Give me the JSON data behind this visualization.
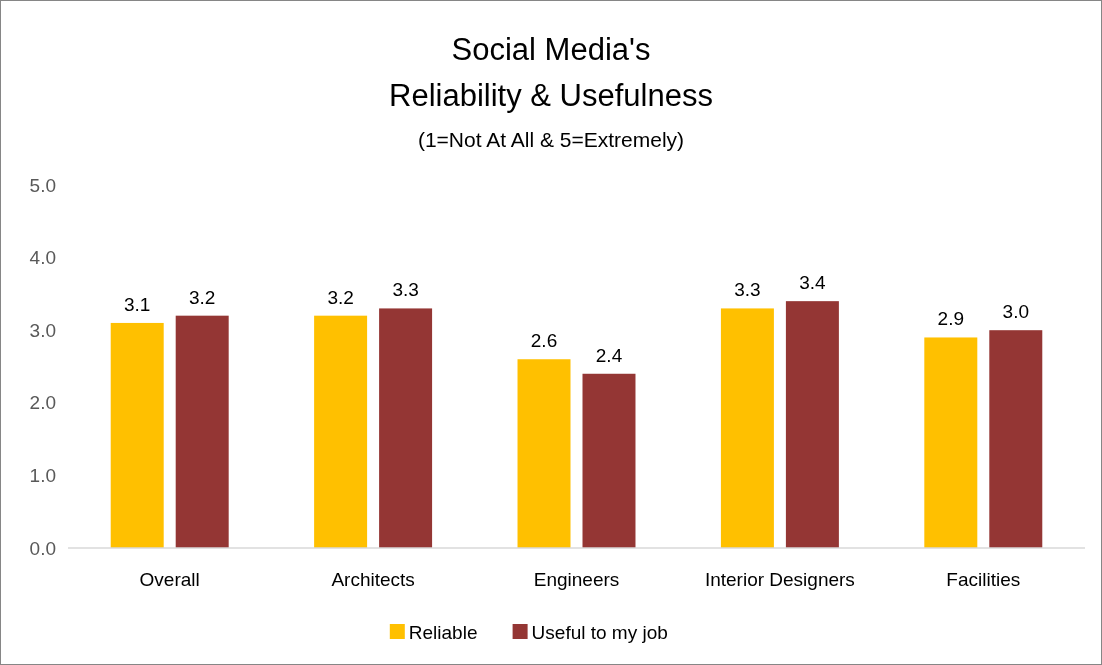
{
  "chart_data": {
    "type": "bar",
    "title": "Social Media's\nReliability & Usefulness",
    "subtitle": "(1=Not At All & 5=Extremely)",
    "categories": [
      "Overall",
      "Architects",
      "Engineers",
      "Interior Designers",
      "Facilities"
    ],
    "series": [
      {
        "name": "Reliable",
        "color": "#ffc000",
        "values": [
          3.1,
          3.2,
          2.6,
          3.3,
          2.9
        ],
        "value_labels": [
          "3.1",
          "3.2",
          "2.6",
          "3.3",
          "2.9"
        ]
      },
      {
        "name": "Useful to my job",
        "color": "#943634",
        "values": [
          3.2,
          3.3,
          2.4,
          3.4,
          3.0
        ],
        "value_labels": [
          "3.2",
          "3.3",
          "2.4",
          "3.4",
          "3.0"
        ]
      }
    ],
    "ylim": [
      0,
      5
    ],
    "yticks": [
      {
        "value": 0,
        "label": "0.0"
      },
      {
        "value": 1,
        "label": "1.0"
      },
      {
        "value": 2,
        "label": "2.0"
      },
      {
        "value": 3,
        "label": "3.0"
      },
      {
        "value": 4,
        "label": "4.0"
      },
      {
        "value": 5,
        "label": "5.0"
      }
    ],
    "grid": false,
    "legend": "bottom"
  }
}
